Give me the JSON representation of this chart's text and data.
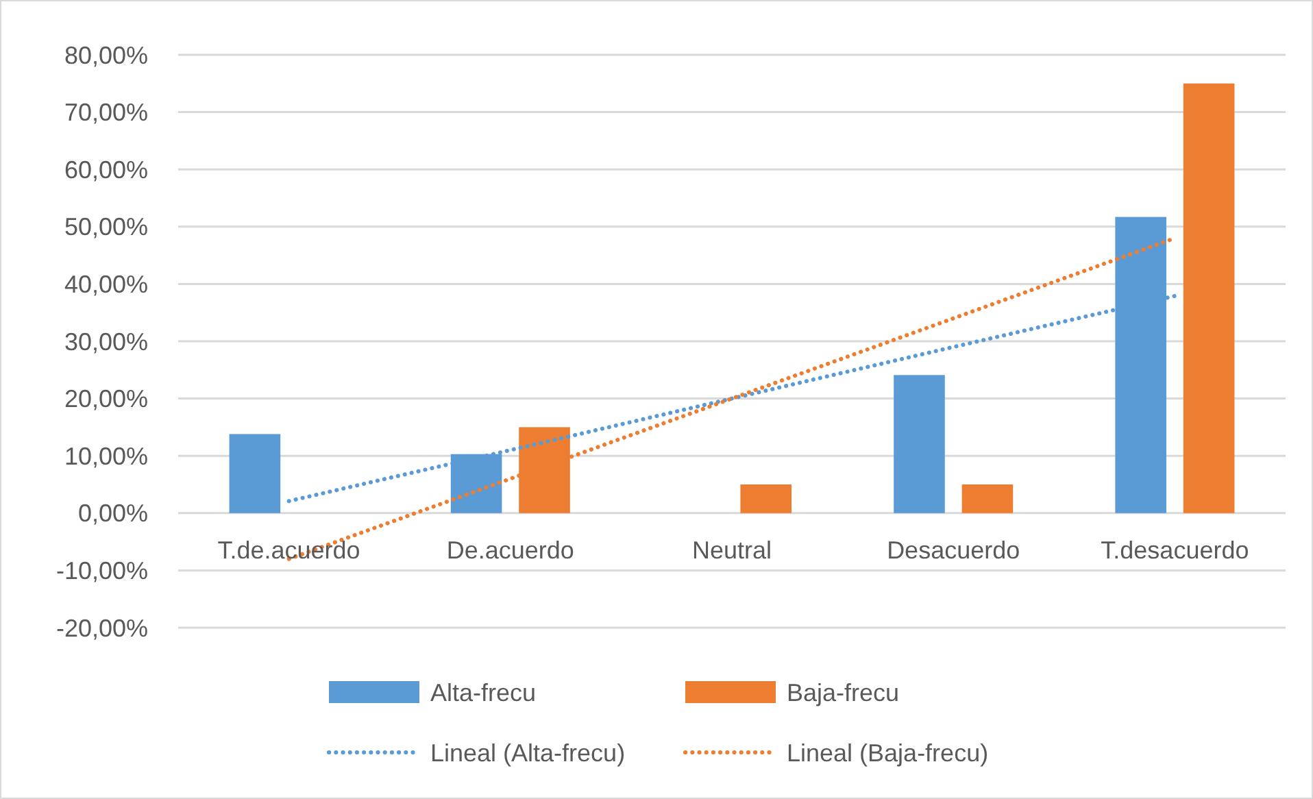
{
  "chart_data": {
    "type": "bar",
    "categories": [
      "T.de.acuerdo",
      "De.acuerdo",
      "Neutral",
      "Desacuerdo",
      "T.desacuerdo"
    ],
    "series": [
      {
        "name": "Alta-frecu",
        "color": "#5b9bd5",
        "values": [
          13.8,
          10.3,
          0,
          24.1,
          51.7
        ]
      },
      {
        "name": "Baja-frecu",
        "color": "#ed7d31",
        "values": [
          0,
          15,
          5,
          5,
          75
        ]
      },
      {
        "name": "Lineal (Alta-frecu)",
        "type": "line",
        "color": "#5b9bd5",
        "line_style": "dotted",
        "marker": "none",
        "values": [
          2.1,
          11.0,
          20.0,
          29.0,
          37.9
        ]
      },
      {
        "name": "Lineal (Baja-frecu)",
        "type": "line",
        "color": "#ed7d31",
        "line_style": "dotted",
        "marker": "none",
        "values": [
          -8,
          6,
          20,
          34,
          48
        ]
      }
    ],
    "ylim": [
      -20,
      80
    ],
    "yticks": [
      {
        "value": -20,
        "label": "-20,00%"
      },
      {
        "value": -10,
        "label": "-10,00%"
      },
      {
        "value": 0,
        "label": "0,00%"
      },
      {
        "value": 10,
        "label": "10,00%"
      },
      {
        "value": 20,
        "label": "20,00%"
      },
      {
        "value": 30,
        "label": "30,00%"
      },
      {
        "value": 40,
        "label": "40,00%"
      },
      {
        "value": 50,
        "label": "50,00%"
      },
      {
        "value": 60,
        "label": "60,00%"
      },
      {
        "value": 70,
        "label": "70,00%"
      },
      {
        "value": 80,
        "label": "80,00%"
      }
    ],
    "grid": "y",
    "legend": "bottom"
  }
}
